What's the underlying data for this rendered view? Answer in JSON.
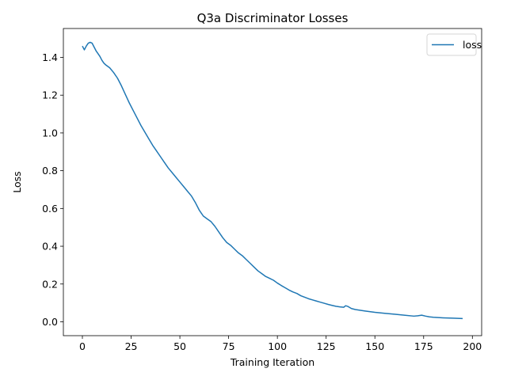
{
  "chart_data": {
    "type": "line",
    "title": "Q3a Discriminator Losses",
    "xlabel": "Training Iteration",
    "ylabel": "Loss",
    "xlim": [
      -9.75,
      204.75
    ],
    "ylim": [
      -0.0735,
      1.553
    ],
    "xticks": [
      0,
      25,
      50,
      75,
      100,
      125,
      150,
      175,
      200
    ],
    "xtick_labels": [
      "0",
      "25",
      "50",
      "75",
      "100",
      "125",
      "150",
      "175",
      "200"
    ],
    "yticks": [
      0.0,
      0.2,
      0.4,
      0.6,
      0.8,
      1.0,
      1.2,
      1.4
    ],
    "ytick_labels": [
      "0.0",
      "0.2",
      "0.4",
      "0.6",
      "0.8",
      "1.0",
      "1.2",
      "1.4"
    ],
    "grid": false,
    "legend": {
      "position": "top-right",
      "entries": [
        "loss"
      ]
    },
    "series": [
      {
        "name": "loss",
        "color": "#1f77b4",
        "x": [
          0,
          1,
          2,
          3,
          4,
          5,
          6,
          7,
          8,
          9,
          10,
          11,
          12,
          14,
          16,
          18,
          20,
          22,
          24,
          26,
          28,
          30,
          32,
          34,
          36,
          38,
          40,
          42,
          44,
          46,
          48,
          50,
          52,
          54,
          56,
          58,
          60,
          62,
          64,
          66,
          68,
          70,
          72,
          74,
          76,
          78,
          80,
          82,
          84,
          86,
          88,
          90,
          92,
          94,
          96,
          98,
          100,
          102,
          104,
          106,
          108,
          110,
          112,
          114,
          116,
          118,
          120,
          122,
          124,
          126,
          128,
          130,
          132,
          134,
          135,
          136,
          138,
          140,
          145,
          150,
          155,
          160,
          165,
          170,
          172,
          174,
          176,
          178,
          180,
          185,
          190,
          195
        ],
        "y": [
          1.46,
          1.44,
          1.46,
          1.475,
          1.48,
          1.475,
          1.455,
          1.435,
          1.42,
          1.405,
          1.385,
          1.37,
          1.36,
          1.345,
          1.32,
          1.29,
          1.25,
          1.205,
          1.16,
          1.12,
          1.08,
          1.04,
          1.005,
          0.97,
          0.935,
          0.905,
          0.875,
          0.845,
          0.815,
          0.79,
          0.765,
          0.74,
          0.715,
          0.69,
          0.665,
          0.63,
          0.59,
          0.56,
          0.545,
          0.53,
          0.505,
          0.475,
          0.445,
          0.42,
          0.405,
          0.385,
          0.365,
          0.35,
          0.33,
          0.31,
          0.29,
          0.27,
          0.255,
          0.24,
          0.23,
          0.22,
          0.205,
          0.192,
          0.18,
          0.168,
          0.158,
          0.15,
          0.138,
          0.13,
          0.122,
          0.116,
          0.11,
          0.104,
          0.098,
          0.092,
          0.087,
          0.082,
          0.079,
          0.077,
          0.085,
          0.082,
          0.07,
          0.065,
          0.057,
          0.05,
          0.045,
          0.04,
          0.035,
          0.03,
          0.032,
          0.035,
          0.03,
          0.026,
          0.024,
          0.021,
          0.019,
          0.017
        ]
      }
    ]
  }
}
